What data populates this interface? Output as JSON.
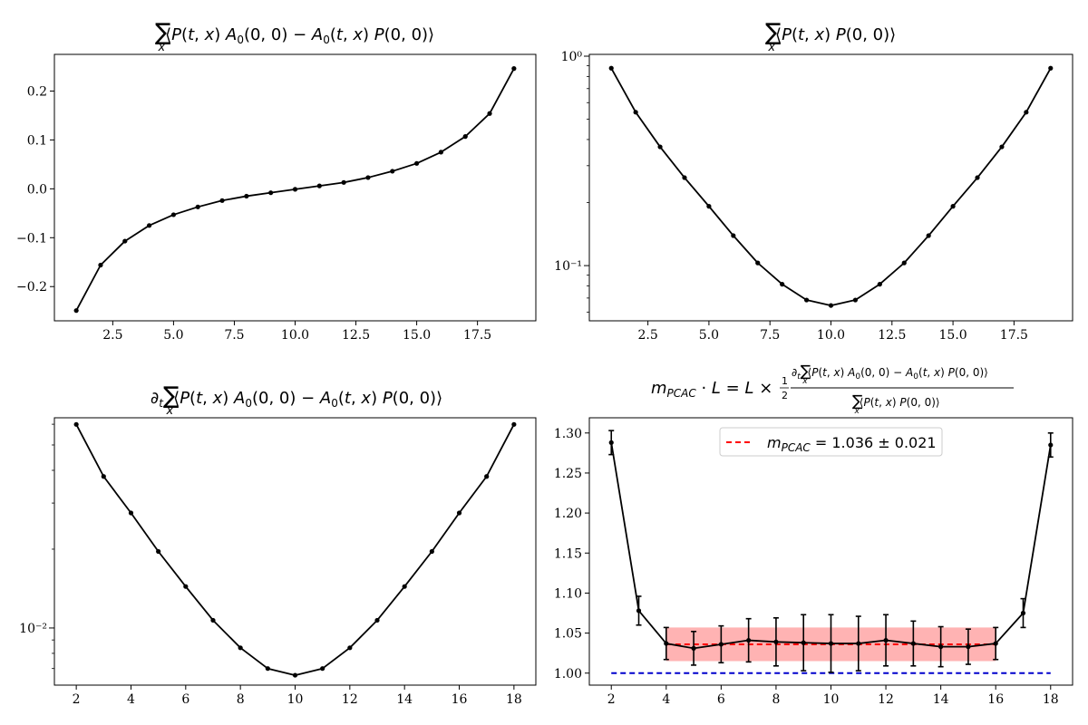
{
  "chart_data": [
    {
      "type": "line",
      "title": "∑ₓ⟨P(t, x) A₀(0, 0) − A₀(t, x) P(0, 0)⟩",
      "yscale": "linear",
      "xlim": [
        0.1,
        19.9
      ],
      "ylim": [
        -0.27,
        0.275
      ],
      "xticks": [
        2.5,
        5.0,
        7.5,
        10.0,
        12.5,
        15.0,
        17.5
      ],
      "xtick_labels": [
        "2.5",
        "5.0",
        "7.5",
        "10.0",
        "12.5",
        "15.0",
        "17.5"
      ],
      "yticks": [
        -0.2,
        -0.1,
        0.0,
        0.1,
        0.2
      ],
      "ytick_labels": [
        "−0.2",
        "−0.1",
        "0.0",
        "0.1",
        "0.2"
      ],
      "series": [
        {
          "color": "#000000",
          "x": [
            1,
            2,
            3,
            4,
            5,
            6,
            7,
            8,
            9,
            10,
            11,
            12,
            13,
            14,
            15,
            16,
            17,
            18,
            19
          ],
          "y": [
            -0.249,
            -0.156,
            -0.107,
            -0.075,
            -0.053,
            -0.037,
            -0.024,
            -0.015,
            -0.008,
            -0.001,
            0.006,
            0.013,
            0.023,
            0.036,
            0.052,
            0.075,
            0.107,
            0.154,
            0.246
          ]
        }
      ]
    },
    {
      "type": "line",
      "title": "∑ₓ⟨P(t, x) P(0, 0)⟩",
      "yscale": "log",
      "xlim": [
        0.1,
        19.9
      ],
      "ylim": [
        0.0545,
        1.02
      ],
      "xticks": [
        2.5,
        5.0,
        7.5,
        10.0,
        12.5,
        15.0,
        17.5
      ],
      "xtick_labels": [
        "2.5",
        "5.0",
        "7.5",
        "10.0",
        "12.5",
        "15.0",
        "17.5"
      ],
      "major_yticks": [
        0.1,
        1.0
      ],
      "major_ytick_labels": [
        "10⁻¹",
        "10⁰"
      ],
      "series": [
        {
          "color": "#000000",
          "x": [
            1,
            2,
            3,
            4,
            5,
            6,
            7,
            8,
            9,
            10,
            11,
            12,
            13,
            14,
            15,
            16,
            17,
            18,
            19
          ],
          "y": [
            0.876,
            0.54,
            0.369,
            0.263,
            0.192,
            0.139,
            0.103,
            0.0815,
            0.0685,
            0.0645,
            0.0685,
            0.0815,
            0.103,
            0.139,
            0.192,
            0.263,
            0.369,
            0.54,
            0.876
          ]
        }
      ]
    },
    {
      "type": "line",
      "title": "∂ₜ∑ₓ⟨P(t, x) A₀(0, 0) − A₀(t, x) P(0, 0)⟩",
      "yscale": "log",
      "xlim": [
        1.2,
        18.8
      ],
      "ylim": [
        0.00605,
        0.0635
      ],
      "xticks": [
        2,
        4,
        6,
        8,
        10,
        12,
        14,
        16,
        18
      ],
      "xtick_labels": [
        "2",
        "4",
        "6",
        "8",
        "10",
        "12",
        "14",
        "16",
        "18"
      ],
      "major_yticks": [
        0.01
      ],
      "major_ytick_labels": [
        "10⁻²"
      ],
      "series": [
        {
          "color": "#000000",
          "x": [
            2,
            3,
            4,
            5,
            6,
            7,
            8,
            9,
            10,
            11,
            12,
            13,
            14,
            15,
            16,
            17,
            18
          ],
          "y": [
            0.0599,
            0.0379,
            0.0275,
            0.0196,
            0.0144,
            0.0107,
            0.0084,
            0.007,
            0.0066,
            0.007,
            0.0084,
            0.0107,
            0.0144,
            0.0196,
            0.0275,
            0.0379,
            0.0599
          ]
        }
      ]
    },
    {
      "type": "line",
      "title": "m_PCAC · L = L × ½ ∂ₜ∑ₓ⟨P(t, x) A₀(0, 0) − A₀(t, x) P(0, 0)⟩ / ∑ₓ⟨P(t, x) P(0, 0)⟩",
      "yscale": "linear",
      "xlim": [
        1.2,
        18.8
      ],
      "ylim": [
        0.985,
        1.319
      ],
      "xticks": [
        2,
        4,
        6,
        8,
        10,
        12,
        14,
        16,
        18
      ],
      "xtick_labels": [
        "2",
        "4",
        "6",
        "8",
        "10",
        "12",
        "14",
        "16",
        "18"
      ],
      "yticks": [
        1.0,
        1.05,
        1.1,
        1.15,
        1.2,
        1.25,
        1.3
      ],
      "ytick_labels": [
        "1.00",
        "1.05",
        "1.10",
        "1.15",
        "1.20",
        "1.25",
        "1.30"
      ],
      "series": [
        {
          "color": "#000000",
          "x": [
            2,
            3,
            4,
            5,
            6,
            7,
            8,
            9,
            10,
            11,
            12,
            13,
            14,
            15,
            16,
            17,
            18
          ],
          "y": [
            1.288,
            1.078,
            1.037,
            1.031,
            1.036,
            1.041,
            1.039,
            1.038,
            1.037,
            1.037,
            1.041,
            1.037,
            1.033,
            1.033,
            1.037,
            1.075,
            1.285
          ],
          "yerr": [
            0.015,
            0.018,
            0.02,
            0.021,
            0.023,
            0.027,
            0.03,
            0.035,
            0.036,
            0.034,
            0.032,
            0.028,
            0.025,
            0.022,
            0.02,
            0.018,
            0.015
          ]
        }
      ],
      "fit": {
        "value": 1.036,
        "error": 0.021,
        "x_from": 4,
        "x_to": 16,
        "color": "#ff0000",
        "band_color": "#ff9999"
      },
      "reference_line": {
        "y": 1.0,
        "x_from": 2,
        "x_to": 18,
        "color": "#0000cc"
      },
      "legend": {
        "label": "m_PCAC = 1.036 ± 0.021",
        "placement": "top-center"
      }
    }
  ]
}
